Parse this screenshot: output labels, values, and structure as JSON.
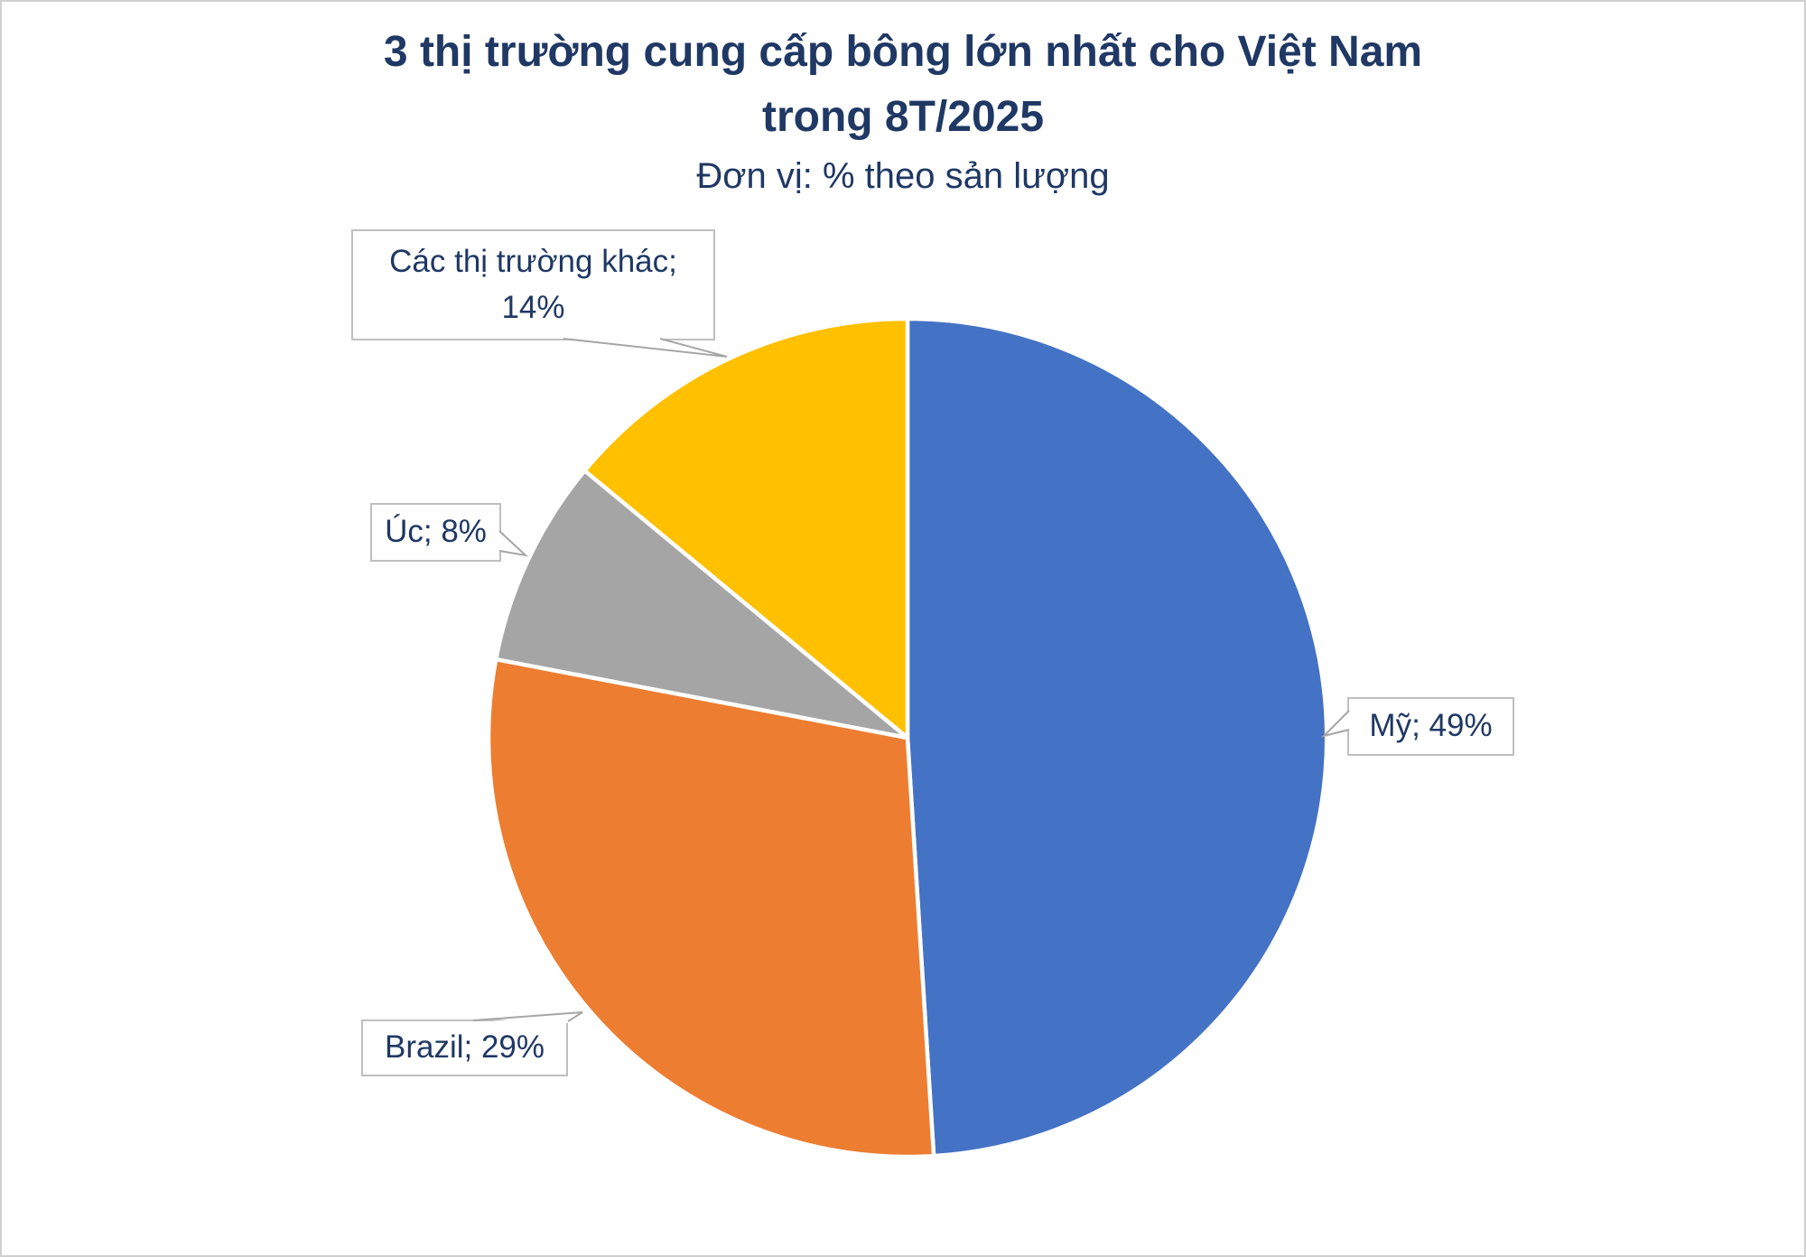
{
  "frame": {
    "background": "#FFFFFF",
    "border_color": "#CFCFCF"
  },
  "header": {
    "title_line1": "3 thị trường cung cấp bông lớn nhất cho Việt Nam",
    "title_line2": "trong 8T/2025",
    "subtitle": "Đơn vị: % theo sản lượng",
    "text_color": "#1F3864"
  },
  "chart_data": {
    "type": "pie",
    "title": "3 thị trường cung cấp bông lớn nhất cho Việt Nam trong 8T/2025",
    "subtitle": "Đơn vị: % theo sản lượng",
    "unit": "% theo sản lượng",
    "direction": "clockwise",
    "start_angle_deg": 0,
    "legend": "none",
    "data_label_style": "callout boxes with leader pointers",
    "slices": [
      {
        "id": "my",
        "label": "Mỹ",
        "value": 49,
        "color": "#4472C4"
      },
      {
        "id": "brazil",
        "label": "Brazil",
        "value": 29,
        "color": "#ED7D31"
      },
      {
        "id": "uc",
        "label": "Úc",
        "value": 8,
        "color": "#A5A5A5"
      },
      {
        "id": "khac",
        "label": "Các thị trường khác",
        "value": 14,
        "color": "#FFC000"
      }
    ],
    "callout_labels": [
      {
        "slice": "khac",
        "lines": [
          "Các thị trường khác;",
          "14%"
        ]
      },
      {
        "slice": "uc",
        "lines": [
          "Úc; 8%"
        ]
      },
      {
        "slice": "my",
        "lines": [
          "Mỹ; 49%"
        ]
      },
      {
        "slice": "brazil",
        "lines": [
          "Brazil; 29%"
        ]
      }
    ]
  }
}
